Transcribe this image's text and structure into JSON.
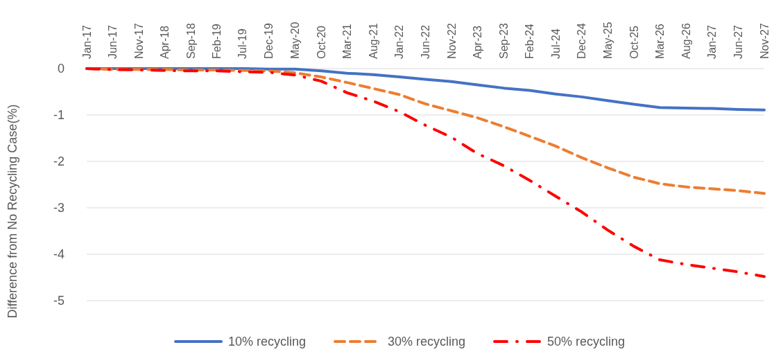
{
  "chart_data": {
    "type": "line",
    "ylabel": "Difference from No Recycling Case(%)",
    "x": [
      "2017-01",
      "2017-06",
      "2017-11",
      "2018-04",
      "2018-09",
      "2019-02",
      "2019-07",
      "2019-12",
      "2020-05",
      "2020-10",
      "2021-03",
      "2021-08",
      "2022-01",
      "2022-06",
      "2022-11",
      "2023-04",
      "2023-09",
      "2024-02",
      "2024-07",
      "2024-12",
      "2025-05",
      "2025-10",
      "2026-03",
      "2026-08",
      "2027-01",
      "2027-06",
      "2027-11"
    ],
    "series": [
      {
        "name": "10% recycling",
        "color": "#4472c4",
        "line_style": "solid",
        "values": [
          0,
          0,
          0,
          0,
          0,
          0,
          0,
          -0.01,
          -0.01,
          -0.05,
          -0.1,
          -0.13,
          -0.18,
          -0.23,
          -0.28,
          -0.35,
          -0.42,
          -0.47,
          -0.55,
          -0.61,
          -0.69,
          -0.77,
          -0.84,
          -0.85,
          -0.86,
          -0.88,
          -0.89
        ]
      },
      {
        "name": "30% recycling",
        "color": "#ed7d31",
        "line_style": "dashed",
        "values": [
          0,
          -0.02,
          -0.02,
          -0.02,
          -0.03,
          -0.03,
          -0.04,
          -0.05,
          -0.09,
          -0.18,
          -0.3,
          -0.43,
          -0.56,
          -0.76,
          -0.91,
          -1.06,
          -1.25,
          -1.46,
          -1.67,
          -1.92,
          -2.14,
          -2.34,
          -2.48,
          -2.55,
          -2.59,
          -2.63,
          -2.69
        ]
      },
      {
        "name": "50% recycling",
        "color": "#ff0000",
        "line_style": "dashdot",
        "values": [
          0,
          -0.02,
          -0.03,
          -0.04,
          -0.05,
          -0.05,
          -0.07,
          -0.08,
          -0.14,
          -0.27,
          -0.52,
          -0.7,
          -0.93,
          -1.22,
          -1.48,
          -1.83,
          -2.09,
          -2.41,
          -2.75,
          -3.09,
          -3.48,
          -3.83,
          -4.12,
          -4.22,
          -4.3,
          -4.38,
          -4.48
        ]
      }
    ],
    "xlim": [
      "2017-01",
      "2027-11"
    ],
    "xticks": [
      {
        "value": "2017-01",
        "label": "Jan-17"
      },
      {
        "value": "2017-06",
        "label": "Jun-17"
      },
      {
        "value": "2017-11",
        "label": "Nov-17"
      },
      {
        "value": "2018-04",
        "label": "Apr-18"
      },
      {
        "value": "2018-09",
        "label": "Sep-18"
      },
      {
        "value": "2019-02",
        "label": "Feb-19"
      },
      {
        "value": "2019-07",
        "label": "Jul-19"
      },
      {
        "value": "2019-12",
        "label": "Dec-19"
      },
      {
        "value": "2020-05",
        "label": "May-20"
      },
      {
        "value": "2020-10",
        "label": "Oct-20"
      },
      {
        "value": "2021-03",
        "label": "Mar-21"
      },
      {
        "value": "2021-08",
        "label": "Aug-21"
      },
      {
        "value": "2022-01",
        "label": "Jan-22"
      },
      {
        "value": "2022-06",
        "label": "Jun-22"
      },
      {
        "value": "2022-11",
        "label": "Nov-22"
      },
      {
        "value": "2023-04",
        "label": "Apr-23"
      },
      {
        "value": "2023-09",
        "label": "Sep-23"
      },
      {
        "value": "2024-02",
        "label": "Feb-24"
      },
      {
        "value": "2024-07",
        "label": "Jul-24"
      },
      {
        "value": "2024-12",
        "label": "Dec-24"
      },
      {
        "value": "2025-05",
        "label": "May-25"
      },
      {
        "value": "2025-10",
        "label": "Oct-25"
      },
      {
        "value": "2026-03",
        "label": "Mar-26"
      },
      {
        "value": "2026-08",
        "label": "Aug-26"
      },
      {
        "value": "2027-01",
        "label": "Jan-27"
      },
      {
        "value": "2027-06",
        "label": "Jun-27"
      },
      {
        "value": "2027-11",
        "label": "Nov-27"
      }
    ],
    "ylim": [
      -5,
      0
    ],
    "yticks": [
      0,
      -1,
      -2,
      -3,
      -4,
      -5
    ],
    "grid": "y",
    "legend": "bottom",
    "marker": "none"
  }
}
